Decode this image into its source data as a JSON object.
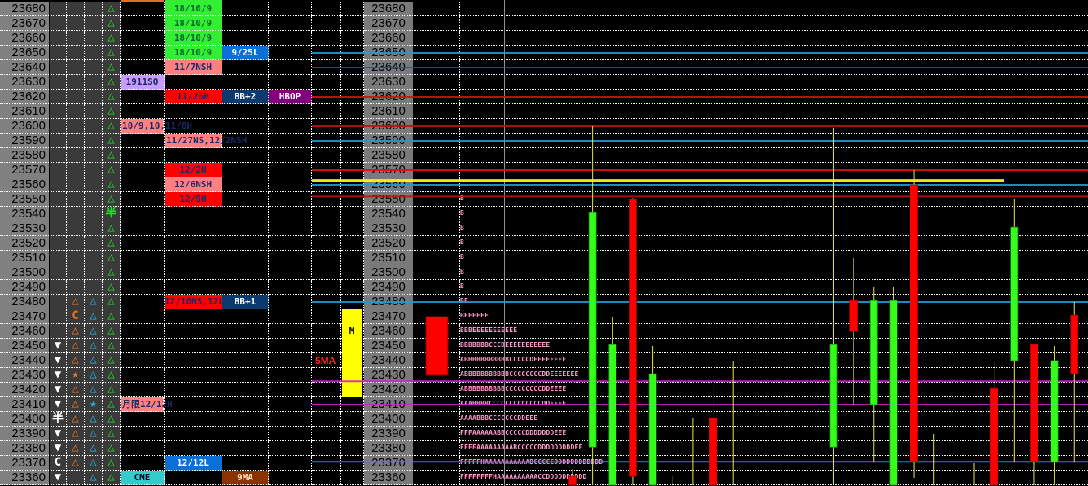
{
  "colors": {
    "green_label": "#33ee33",
    "pink_label": "#ff8080",
    "red_label": "#ff0000",
    "blue_label": "#0a6fd6",
    "navy_label": "#0d3a6e",
    "purple_label": "#800080",
    "lavender_label": "#c89bff",
    "cyan_label": "#33cccc",
    "brown_label": "#8a3300",
    "bull": "#33ff1a",
    "bear": "#ff0000",
    "wick": "#e8e84a",
    "tpo_text": "#ff99cc"
  },
  "glyphs": {
    "tri-up": "△",
    "tri-down": "▼",
    "star": "★",
    "half": "半",
    "c": "C"
  },
  "rows": [
    {
      "price": "23680",
      "c4": "tri-up"
    },
    {
      "price": "23670",
      "c4": "tri-up"
    },
    {
      "price": "23660",
      "c4": "tri-up"
    },
    {
      "price": "23650",
      "c4": "tri-up"
    },
    {
      "price": "23640",
      "c4": "tri-up"
    },
    {
      "price": "23630",
      "c4": "tri-up"
    },
    {
      "price": "23620",
      "c4": "tri-up"
    },
    {
      "price": "23610",
      "c4": "tri-up"
    },
    {
      "price": "23600",
      "c4": "tri-up"
    },
    {
      "price": "23590",
      "c4": "tri-up"
    },
    {
      "price": "23580",
      "c4": "tri-up"
    },
    {
      "price": "23570",
      "c4": "tri-up"
    },
    {
      "price": "23560",
      "c4": "tri-up"
    },
    {
      "price": "23550",
      "c4": "tri-up"
    },
    {
      "price": "23540",
      "c4": "half"
    },
    {
      "price": "23530",
      "c4": "tri-up"
    },
    {
      "price": "23520",
      "c4": "tri-up"
    },
    {
      "price": "23510",
      "c4": "tri-up"
    },
    {
      "price": "23500",
      "c4": "tri-up"
    },
    {
      "price": "23490",
      "c4": "tri-up"
    },
    {
      "price": "23480",
      "c2": "tri-up",
      "c3": "tri-up",
      "c4": "tri-up"
    },
    {
      "price": "23470",
      "c2": "c",
      "c3": "tri-up",
      "c4": "tri-up"
    },
    {
      "price": "23460",
      "c2": "tri-up",
      "c3": "tri-up",
      "c4": "tri-up"
    },
    {
      "price": "23450",
      "c1": "tri-down",
      "c2": "tri-up",
      "c3": "tri-up",
      "c4": "tri-up"
    },
    {
      "price": "23440",
      "c1": "tri-down",
      "c2": "tri-up",
      "c3": "tri-up",
      "c4": "tri-up"
    },
    {
      "price": "23430",
      "c1": "tri-down",
      "c2": "star",
      "c3": "tri-up",
      "c4": "tri-up"
    },
    {
      "price": "23420",
      "c1": "tri-down",
      "c2": "tri-up",
      "c3": "tri-up",
      "c4": "tri-up"
    },
    {
      "price": "23410",
      "c1": "tri-down",
      "c2": "tri-up",
      "c3": "star",
      "c4": "tri-up"
    },
    {
      "price": "23400",
      "c1": "half",
      "c2": "tri-up",
      "c3": "tri-up",
      "c4": "tri-up"
    },
    {
      "price": "23390",
      "c1": "tri-down",
      "c2": "tri-up",
      "c3": "tri-up",
      "c4": "tri-up"
    },
    {
      "price": "23380",
      "c1": "tri-down",
      "c2": "tri-up",
      "c3": "tri-up",
      "c4": "tri-up"
    },
    {
      "price": "23370",
      "c1": "c",
      "c2": "tri-up",
      "c3": "tri-up",
      "c4": "tri-up"
    },
    {
      "price": "23360",
      "c1": "tri-down",
      "c3": "tri-up",
      "c4": "tri-up"
    }
  ],
  "labels": [
    {
      "price": "23680",
      "col": "c6",
      "text": "18/10/9",
      "style": "green_label"
    },
    {
      "price": "23670",
      "col": "c6",
      "text": "18/10/9",
      "style": "green_label"
    },
    {
      "price": "23660",
      "col": "c6",
      "text": "18/10/9",
      "style": "green_label"
    },
    {
      "price": "23650",
      "col": "c6",
      "text": "18/10/9",
      "style": "green_label"
    },
    {
      "price": "23650",
      "col": "c7",
      "text": "9/25L",
      "style": "blue_label"
    },
    {
      "price": "23640",
      "col": "c6",
      "text": "11/7NSH",
      "style": "pink_label"
    },
    {
      "price": "23630",
      "col": "c5",
      "text": "1911SQ",
      "style": "lavender_label"
    },
    {
      "price": "23620",
      "col": "c6",
      "text": "11/26H",
      "style": "red_label"
    },
    {
      "price": "23620",
      "col": "c7",
      "text": "BB+2",
      "style": "navy_label"
    },
    {
      "price": "23620",
      "col": "c8",
      "text": "HBOP",
      "style": "purple_label"
    },
    {
      "price": "23600",
      "col": "c5",
      "text": "10/9,10,11/8H",
      "style": "pink_label",
      "overflow": true
    },
    {
      "price": "23590",
      "col": "c6",
      "text": "11/27NS,12/2NSH",
      "style": "pink_label",
      "overflow": true
    },
    {
      "price": "23570",
      "col": "c6",
      "text": "12/2H",
      "style": "red_label"
    },
    {
      "price": "23560",
      "col": "c6",
      "text": "12/6NSH",
      "style": "pink_label"
    },
    {
      "price": "23550",
      "col": "c6",
      "text": "12/9H",
      "style": "red_label"
    },
    {
      "price": "23480",
      "col": "c6",
      "text": "12/10NS,12L",
      "style": "red_label"
    },
    {
      "price": "23480",
      "col": "c7",
      "text": "BB+1",
      "style": "navy_label"
    },
    {
      "price": "23410",
      "col": "c5",
      "text": "月限12/12H",
      "style": "pink_label",
      "overflow": true
    },
    {
      "price": "23370",
      "col": "c6",
      "text": "12/12L",
      "style": "blue_label"
    },
    {
      "price": "23360",
      "col": "c5",
      "text": "CME",
      "style": "cyan_label"
    },
    {
      "price": "23360",
      "col": "c7",
      "text": "9MA",
      "style": "brown_label"
    }
  ],
  "side": {
    "marker": "M",
    "ma_label": "5MA",
    "marker_range": [
      23470,
      23420
    ]
  },
  "tpo": [
    {
      "price": "23550",
      "letters": "B"
    },
    {
      "price": "23540",
      "letters": "B"
    },
    {
      "price": "23530",
      "letters": "B"
    },
    {
      "price": "23520",
      "letters": "B"
    },
    {
      "price": "23510",
      "letters": "B"
    },
    {
      "price": "23500",
      "letters": "B"
    },
    {
      "price": "23490",
      "letters": "B"
    },
    {
      "price": "23480",
      "letters": "BE"
    },
    {
      "price": "23470",
      "letters": "BEEEEEE"
    },
    {
      "price": "23460",
      "letters": "BBBEEEEEEEEEEE"
    },
    {
      "price": "23450",
      "letters": "BBBBBBBCCCDEEEEEEEEEEE"
    },
    {
      "price": "23440",
      "letters": "ABBBBBBBBBBBCCCCCDEEEEEEEE"
    },
    {
      "price": "23430",
      "letters": "ABBBBBBBBBBBCCCCCCCCDDEEEEEEE"
    },
    {
      "price": "23420",
      "letters": "ABBBBBBBBBBCCCCCCCCCDDEEEE"
    },
    {
      "price": "23410",
      "letters": "AAABBBBCCCCCCCCCCCCCDDEEEE"
    },
    {
      "price": "23400",
      "letters": "AAAABBBCCCCCCCDDEEE"
    },
    {
      "price": "23390",
      "letters": "FFFAAAAAABBCCCCCDDDDDDDEEE"
    },
    {
      "price": "23380",
      "letters": "FFFFAAAAAAAAABCCCCCDDDDDDDDDEE"
    },
    {
      "price": "23370",
      "letters": "FFFFFHAAAAAAAAAAABCCCCCDDDDDDDDDDDD"
    },
    {
      "price": "23360",
      "letters": "FFFFFFFFHAAAAAAAAAACCDDDDDDDDDD"
    }
  ],
  "levels": [
    {
      "price": 23650,
      "color": "#1e9ad6"
    },
    {
      "price": 23640,
      "color": "#d01010"
    },
    {
      "price": 23620,
      "color": "#d01010"
    },
    {
      "price": 23600,
      "color": "#c01010"
    },
    {
      "price": 23590,
      "color": "#1e9ad6"
    },
    {
      "price": 23570,
      "color": "#e01010"
    },
    {
      "price": 23563,
      "color": "#ffff20",
      "thick": true,
      "partial": true
    },
    {
      "price": 23560,
      "color": "#1e9ad6"
    },
    {
      "price": 23552,
      "color": "#c01010"
    },
    {
      "price": 23480,
      "color": "#1e9ad6"
    },
    {
      "price": 23426,
      "color": "#d020d0"
    },
    {
      "price": 23410,
      "color": "#d020d0"
    },
    {
      "price": 23371,
      "color": "#1e9ad6"
    }
  ],
  "daily_candle": {
    "o": 23470,
    "h": 23480,
    "l": 23372,
    "c": 23430
  },
  "candles": [
    {
      "o": 23361,
      "h": 23366,
      "l": 23330,
      "c": 23340
    },
    {
      "o": 23381,
      "h": 23600,
      "l": 23330,
      "c": 23541
    },
    {
      "o": 23330,
      "h": 23470,
      "l": 23320,
      "c": 23451
    },
    {
      "o": 23550,
      "h": 23551,
      "l": 23340,
      "c": 23361
    },
    {
      "o": 23330,
      "h": 23450,
      "l": 23320,
      "c": 23431
    },
    {
      "o": 23340,
      "h": 23361,
      "l": 23330,
      "c": 23338
    },
    {
      "o": 23340,
      "h": 23401,
      "l": 23330,
      "c": 23335
    },
    {
      "o": 23401,
      "h": 23430,
      "l": 23320,
      "c": 23330
    },
    {
      "o": 23340,
      "h": 23440,
      "l": 23320,
      "c": 23335
    },
    null,
    null,
    null,
    null,
    {
      "o": 23381,
      "h": 23599,
      "l": 23330,
      "c": 23451
    },
    {
      "o": 23481,
      "h": 23510,
      "l": 23410,
      "c": 23460
    },
    {
      "o": 23410,
      "h": 23490,
      "l": 23371,
      "c": 23481
    },
    {
      "o": 23330,
      "h": 23490,
      "l": 23320,
      "c": 23481
    },
    {
      "o": 23560,
      "h": 23570,
      "l": 23360,
      "c": 23371
    },
    {
      "o": 23340,
      "h": 23390,
      "l": 23320,
      "c": 23335
    },
    null,
    {
      "o": 23340,
      "h": 23370,
      "l": 23320,
      "c": 23335
    },
    {
      "o": 23421,
      "h": 23440,
      "l": 23320,
      "c": 23330
    },
    {
      "o": 23440,
      "h": 23550,
      "l": 23371,
      "c": 23531
    },
    {
      "o": 23451,
      "h": 23451,
      "l": 23330,
      "c": 23371
    },
    {
      "o": 23371,
      "h": 23450,
      "l": 23330,
      "c": 23440
    },
    {
      "o": 23471,
      "h": 23480,
      "l": 23371,
      "c": 23431
    }
  ]
}
